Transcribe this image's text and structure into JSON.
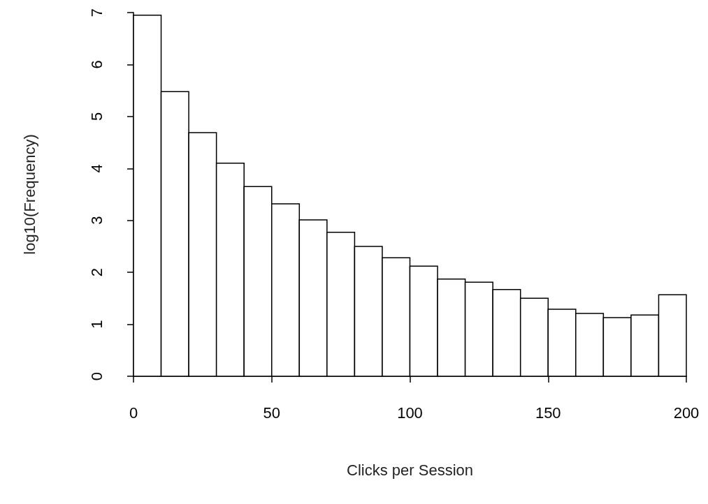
{
  "chart_data": {
    "type": "histogram",
    "xlabel": "Clicks per Session",
    "ylabel": "log10(Frequency)",
    "bins": [
      0,
      10,
      20,
      30,
      40,
      50,
      60,
      70,
      80,
      90,
      100,
      110,
      120,
      130,
      140,
      150,
      160,
      170,
      180,
      190,
      200
    ],
    "values": [
      6.95,
      5.48,
      4.69,
      4.1,
      3.65,
      3.32,
      3.01,
      2.77,
      2.5,
      2.28,
      2.12,
      1.87,
      1.81,
      1.67,
      1.5,
      1.29,
      1.21,
      1.13,
      1.18,
      1.57
    ],
    "color": "#ffffff",
    "xlim": [
      0,
      200
    ],
    "ylim": [
      0,
      7
    ],
    "xticks": [
      0,
      50,
      100,
      150,
      200
    ],
    "yticks": [
      0,
      1,
      2,
      3,
      4,
      5,
      6,
      7
    ],
    "grid": false
  }
}
